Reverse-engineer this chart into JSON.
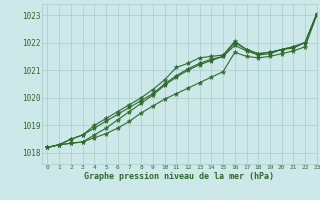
{
  "xlabel": "Graphe pression niveau de la mer (hPa)",
  "background_color": "#cce8e8",
  "grid_color": "#aacccc",
  "line_color": "#2d6a2d",
  "marker_color": "#2d6a2d",
  "xlim": [
    -0.5,
    23
  ],
  "ylim": [
    1017.6,
    1023.4
  ],
  "yticks": [
    1018,
    1019,
    1020,
    1021,
    1022,
    1023
  ],
  "xticks": [
    0,
    1,
    2,
    3,
    4,
    5,
    6,
    7,
    8,
    9,
    10,
    11,
    12,
    13,
    14,
    15,
    16,
    17,
    18,
    19,
    20,
    21,
    22,
    23
  ],
  "line1": [
    1018.2,
    1018.3,
    1018.35,
    1018.4,
    1018.55,
    1018.7,
    1018.9,
    1019.15,
    1019.45,
    1019.7,
    1019.95,
    1020.15,
    1020.35,
    1020.55,
    1020.75,
    1020.95,
    1021.65,
    1021.5,
    1021.45,
    1021.5,
    1021.6,
    1021.7,
    1021.85,
    1023.0
  ],
  "line2": [
    1018.2,
    1018.3,
    1018.35,
    1018.4,
    1018.65,
    1018.9,
    1019.2,
    1019.5,
    1019.8,
    1020.1,
    1020.45,
    1020.75,
    1021.0,
    1021.2,
    1021.35,
    1021.5,
    1021.9,
    1021.7,
    1021.55,
    1021.6,
    1021.75,
    1021.85,
    1022.0,
    1023.05
  ],
  "line3": [
    1018.2,
    1018.3,
    1018.5,
    1018.65,
    1018.9,
    1019.15,
    1019.4,
    1019.65,
    1019.9,
    1020.15,
    1020.5,
    1020.8,
    1021.05,
    1021.25,
    1021.4,
    1021.5,
    1022.0,
    1021.75,
    1021.6,
    1021.65,
    1021.75,
    1021.85,
    1022.0,
    1023.05
  ],
  "line4": [
    1018.2,
    1018.3,
    1018.5,
    1018.65,
    1019.0,
    1019.25,
    1019.5,
    1019.75,
    1020.0,
    1020.3,
    1020.65,
    1021.1,
    1021.25,
    1021.45,
    1021.5,
    1021.55,
    1022.05,
    1021.75,
    1021.6,
    1021.65,
    1021.75,
    1021.8,
    1022.0,
    1023.05
  ]
}
